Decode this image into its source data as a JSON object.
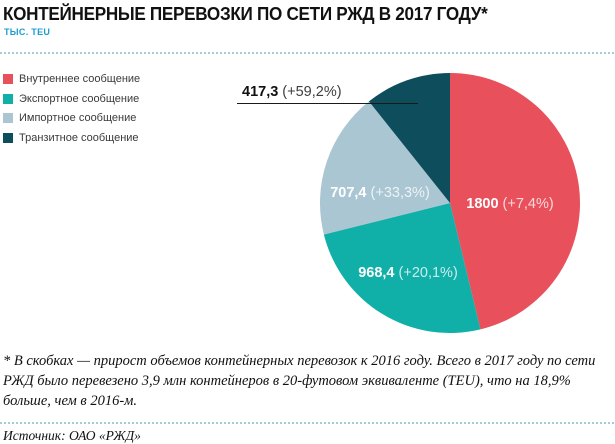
{
  "header": {
    "title": "КОНТЕЙНЕРНЫЕ ПЕРЕВОЗКИ ПО СЕТИ РЖД В 2017 ГОДУ*",
    "subtitle": "ТЫС. TEU"
  },
  "chart_data": {
    "type": "pie",
    "title": "Контейнерные перевозки по сети РЖД в 2017 году",
    "units": "тыс. TEU",
    "total": 3893.1,
    "start_angle_deg": 0,
    "direction": "clockwise",
    "legend_position": "left",
    "slices": [
      {
        "name": "Внутреннее сообщение",
        "value": 1800,
        "value_label": "1800",
        "growth_label": "(+7,4%)",
        "color": "#e8505c"
      },
      {
        "name": "Экспортное сообщение",
        "value": 968.4,
        "value_label": "968,4",
        "growth_label": "(+20,1%)",
        "color": "#10afa8"
      },
      {
        "name": "Импортное сообщение",
        "value": 707.4,
        "value_label": "707,4",
        "growth_label": "(+33,3%)",
        "color": "#abc6d3"
      },
      {
        "name": "Транзитное сообщение",
        "value": 417.3,
        "value_label": "417,3",
        "growth_label": "(+59,2%)",
        "color": "#0e4d5c"
      }
    ]
  },
  "footnote": {
    "lines": [
      "* В скобках — прирост объемов контейнерных перевозок к 2016 году. Всего в 2017 году по сети",
      "РЖД было перевезено 3,9 млн контейнеров в 20-футовом эквиваленте (TEU), что на 18,9%",
      "больше, чем в 2016-м."
    ]
  },
  "source": {
    "text": "Источник: ОАО «РЖД»"
  },
  "colors": {
    "subtitle_accent": "#1b9cd3",
    "dotted_rule": "#a4cdd6",
    "callout_line": "#1a1a1a",
    "legend_text": "#3a3a3a"
  }
}
